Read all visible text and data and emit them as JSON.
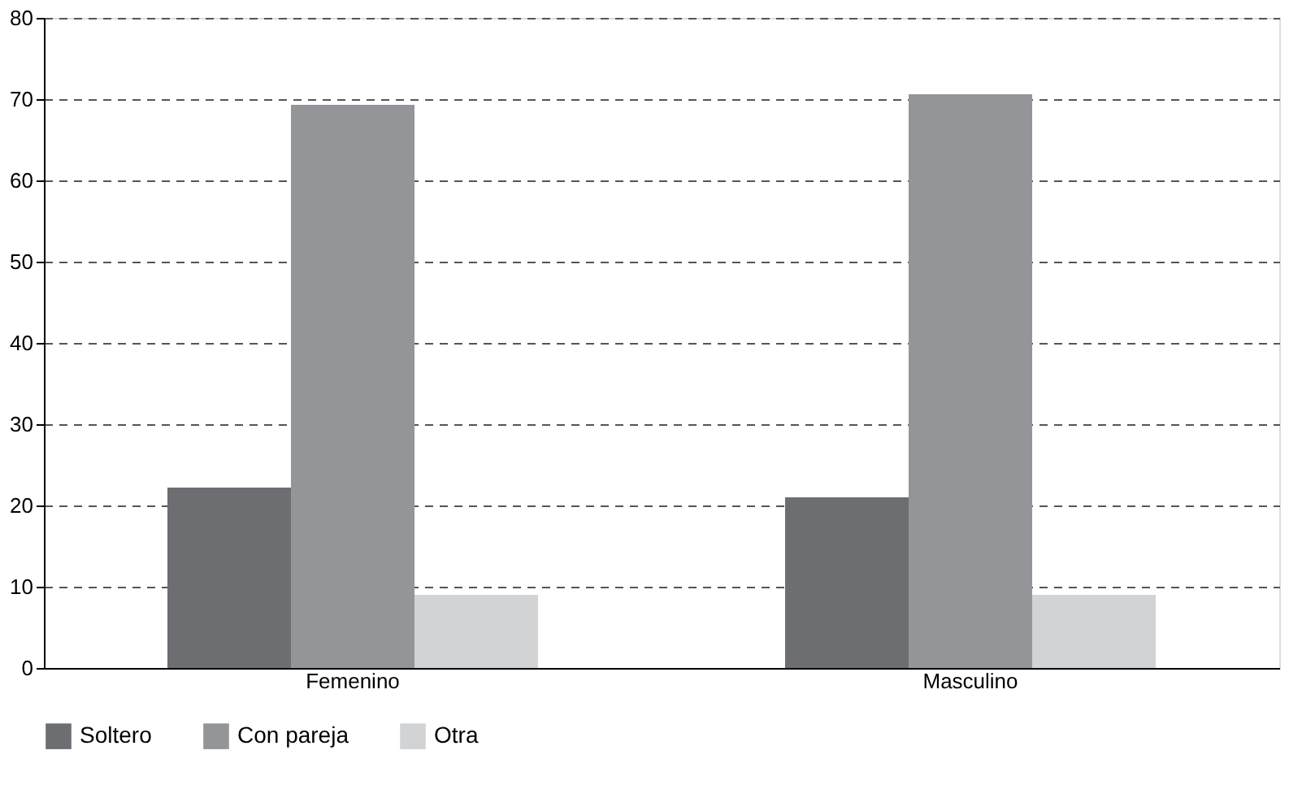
{
  "chart_data": {
    "type": "bar",
    "categories": [
      "Femenino",
      "Masculino"
    ],
    "series": [
      {
        "name": "Soltero",
        "color": "#6d6e71",
        "values": [
          22.2,
          21.0
        ]
      },
      {
        "name": "Con pareja",
        "color": "#939598",
        "values": [
          69.3,
          70.6
        ]
      },
      {
        "name": "Otra",
        "color": "#d1d3d4",
        "values": [
          9.0,
          9.0
        ]
      }
    ],
    "ylim": [
      0,
      80
    ],
    "yticks": [
      0,
      10,
      20,
      30,
      40,
      50,
      60,
      70,
      80
    ],
    "grid": "y",
    "legend": "bottom"
  }
}
